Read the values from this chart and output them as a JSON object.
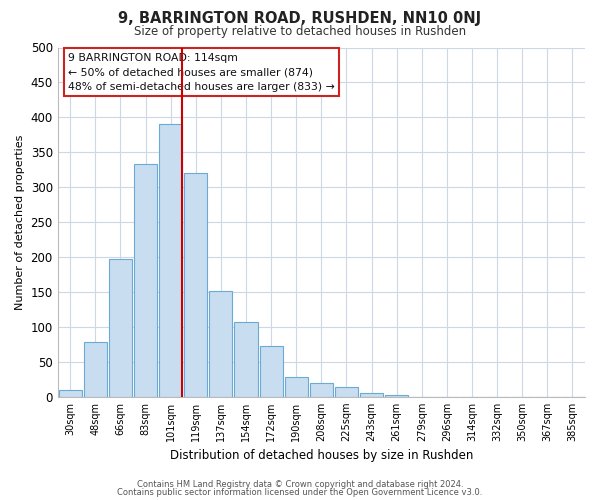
{
  "title": "9, BARRINGTON ROAD, RUSHDEN, NN10 0NJ",
  "subtitle": "Size of property relative to detached houses in Rushden",
  "xlabel": "Distribution of detached houses by size in Rushden",
  "ylabel": "Number of detached properties",
  "bar_labels": [
    "30sqm",
    "48sqm",
    "66sqm",
    "83sqm",
    "101sqm",
    "119sqm",
    "137sqm",
    "154sqm",
    "172sqm",
    "190sqm",
    "208sqm",
    "225sqm",
    "243sqm",
    "261sqm",
    "279sqm",
    "296sqm",
    "314sqm",
    "332sqm",
    "350sqm",
    "367sqm",
    "385sqm"
  ],
  "bar_values": [
    10,
    78,
    197,
    333,
    390,
    321,
    151,
    107,
    73,
    29,
    20,
    14,
    5,
    2,
    0,
    0,
    0,
    0,
    0,
    0,
    0
  ],
  "bar_color": "#c8ddf0",
  "bar_edge_color": "#6aaad4",
  "vline_color": "#cc0000",
  "ylim": [
    0,
    500
  ],
  "yticks": [
    0,
    50,
    100,
    150,
    200,
    250,
    300,
    350,
    400,
    450,
    500
  ],
  "annotation_line1": "9 BARRINGTON ROAD: 114sqm",
  "annotation_line2": "← 50% of detached houses are smaller (874)",
  "annotation_line3": "48% of semi-detached houses are larger (833) →",
  "footer1": "Contains HM Land Registry data © Crown copyright and database right 2024.",
  "footer2": "Contains public sector information licensed under the Open Government Licence v3.0.",
  "bg_color": "#ffffff",
  "grid_color": "#ccd8e8"
}
